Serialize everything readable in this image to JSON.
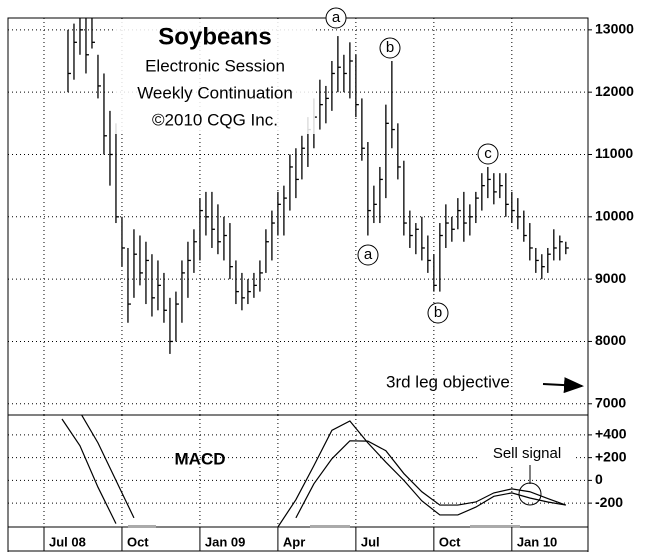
{
  "chart_data": [
    {
      "type": "ohlc",
      "title": "Soybeans",
      "annotations": [
        "Electronic Session",
        "Weekly Continuation",
        "©2010 CQG Inc.",
        "a",
        "b",
        "a",
        "b",
        "c",
        "3rd leg objective"
      ],
      "x": [
        4,
        5,
        6,
        7,
        8,
        9,
        10,
        11,
        12,
        13,
        14,
        15,
        16,
        17,
        18,
        19,
        20,
        21,
        22,
        23,
        24,
        25,
        26,
        27,
        28,
        29,
        30,
        31,
        32,
        33,
        34,
        35,
        36,
        37,
        38,
        39,
        40,
        41,
        42,
        43,
        44,
        45,
        46,
        47,
        48,
        49,
        50,
        51,
        52,
        53,
        54,
        55,
        56,
        57,
        58,
        59,
        60,
        61,
        62,
        63,
        64,
        65,
        66,
        67,
        68,
        69,
        70,
        71,
        72,
        73,
        74,
        75,
        76,
        77,
        78,
        79,
        80,
        81,
        82,
        83,
        84,
        85,
        86,
        87
      ],
      "high": [
        13000,
        13100,
        13300,
        13300,
        13300,
        12600,
        12300,
        11700,
        11500,
        10000,
        9500,
        9800,
        9700,
        9600,
        9400,
        9300,
        9100,
        8700,
        8800,
        9300,
        9600,
        9800,
        10300,
        10400,
        10400,
        10200,
        10000,
        9900,
        9300,
        9100,
        9000,
        9100,
        9300,
        9800,
        10100,
        10400,
        10500,
        11000,
        11100,
        11300,
        11600,
        11900,
        12200,
        12100,
        12500,
        12900,
        12600,
        12800,
        12600,
        11900,
        11200,
        10500,
        10800,
        11800,
        12500,
        11500,
        10900,
        10100,
        9900,
        10000,
        9700,
        9400,
        9900,
        10200,
        10000,
        10300,
        10400,
        10200,
        10400,
        10700,
        10800,
        10700,
        10700,
        10700,
        10400,
        10300,
        10100,
        9900,
        9500,
        9400,
        9500,
        9800,
        9700,
        9600
      ],
      "low": [
        12000,
        12200,
        12600,
        12300,
        12700,
        11900,
        11000,
        10500,
        9900,
        9200,
        8300,
        8700,
        8900,
        8600,
        8400,
        8500,
        8300,
        7800,
        8000,
        8300,
        8700,
        9100,
        9300,
        9700,
        9500,
        9400,
        9300,
        9000,
        8600,
        8500,
        8600,
        8700,
        8800,
        9100,
        9300,
        9700,
        9700,
        10100,
        10300,
        10600,
        10800,
        11100,
        11400,
        11500,
        11700,
        12000,
        12000,
        11900,
        11600,
        10900,
        9700,
        9900,
        9900,
        10300,
        11100,
        10600,
        9700,
        9500,
        9400,
        9300,
        9100,
        8800,
        8800,
        9500,
        9600,
        9800,
        9600,
        9700,
        9900,
        10100,
        10300,
        10200,
        10300,
        10000,
        9900,
        9800,
        9600,
        9300,
        9100,
        9000,
        9100,
        9300,
        9300,
        9400
      ],
      "close": [
        12300,
        12800,
        13000,
        12600,
        12800,
        12100,
        11300,
        11000,
        10000,
        9500,
        8600,
        9400,
        9100,
        9300,
        8700,
        8900,
        8500,
        8000,
        8600,
        9100,
        9300,
        9600,
        10100,
        10000,
        9800,
        9600,
        9700,
        9200,
        8800,
        8700,
        8800,
        8900,
        9100,
        9600,
        9900,
        10200,
        10300,
        10800,
        10600,
        11100,
        11400,
        11600,
        11800,
        11900,
        12300,
        12400,
        12300,
        12500,
        11800,
        11100,
        10100,
        10200,
        10600,
        11500,
        11400,
        10800,
        9900,
        9700,
        9800,
        9500,
        9300,
        8900,
        9700,
        9900,
        9800,
        10100,
        9900,
        10000,
        10300,
        10500,
        10600,
        10400,
        10500,
        10200,
        10100,
        10000,
        9700,
        9500,
        9300,
        9200,
        9400,
        9500,
        9600,
        9500
      ],
      "xlim": [
        -6,
        90.7
      ],
      "ylim": [
        6820,
        13190
      ],
      "yticks": [
        7000,
        8000,
        9000,
        10000,
        11000,
        12000,
        13000
      ],
      "grid": true,
      "color": "#000000"
    },
    {
      "type": "line",
      "title": "MACD",
      "annotations": [
        "Sell signal"
      ],
      "x": [
        3,
        6,
        9,
        12,
        15,
        18,
        21,
        24,
        27,
        30,
        33,
        36,
        39,
        42,
        45,
        48,
        51,
        54,
        57,
        60,
        63,
        66,
        69,
        72,
        75,
        78,
        81,
        84,
        87
      ],
      "series": [
        {
          "color": "#000000",
          "values": [
            540,
            304,
            -60,
            -380,
            null,
            null,
            null,
            null,
            null,
            null,
            null,
            null,
            -410,
            -170,
            130,
            440,
            522,
            330,
            160,
            0,
            -180,
            -304,
            -304,
            -235,
            -140,
            -110,
            -155,
            -190,
            -217
          ]
        },
        {
          "color": "#000000",
          "values": [
            null,
            600,
            330,
            0,
            -330,
            null,
            null,
            null,
            null,
            null,
            null,
            null,
            null,
            -330,
            -30,
            190,
            348,
            345,
            261,
            60,
            -100,
            -217,
            -217,
            -190,
            -110,
            -75,
            -100,
            -160,
            -217
          ]
        }
      ],
      "xlim": [
        -6,
        90.7
      ],
      "ylim": [
        -410,
        575
      ],
      "yticks": [
        {
          "value": 400,
          "label": "+400"
        },
        {
          "value": 200,
          "label": "+200"
        },
        0,
        -200
      ],
      "xticks": [
        {
          "value": 0,
          "label": "Jul 08"
        },
        {
          "value": 13,
          "label": "Oct"
        },
        {
          "value": 26,
          "label": "Jan 09"
        },
        {
          "value": 39,
          "label": "Apr"
        },
        {
          "value": 52,
          "label": "Jul"
        },
        {
          "value": 65,
          "label": "Oct"
        },
        {
          "value": 78,
          "label": "Jan 10"
        }
      ],
      "grid": true
    }
  ]
}
